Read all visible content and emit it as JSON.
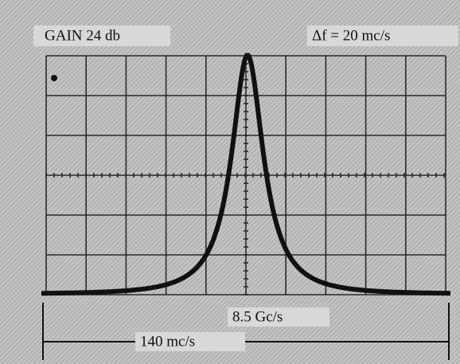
{
  "header": {
    "gain": "GAIN 24 db",
    "delta_f": "Δf = 20 mc/s"
  },
  "footer": {
    "center_frequency": "8.5 Gc/s",
    "span": "140 mc/s"
  }
}
